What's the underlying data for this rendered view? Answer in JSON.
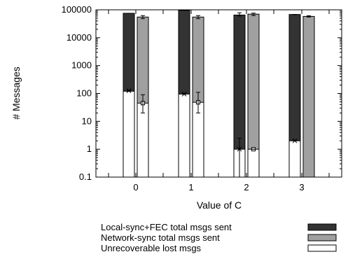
{
  "chart_data": {
    "type": "bar",
    "title": "",
    "xlabel": "Value of C",
    "ylabel": "# Messages",
    "yscale": "log",
    "ylim": [
      0.1,
      100000
    ],
    "categories": [
      "0",
      "1",
      "2",
      "3"
    ],
    "y_ticks": [
      "0.1",
      "1",
      "10",
      "100",
      "1000",
      "10000",
      "100000"
    ],
    "legend_position": "bottom-center",
    "series": [
      {
        "name": "Local-sync+FEC total msgs sent",
        "color": "#333333",
        "values": [
          75000,
          95000,
          65000,
          68000
        ],
        "error_low": [
          75000,
          95000,
          60000,
          68000
        ],
        "error_high": [
          75000,
          95000,
          78000,
          68000
        ]
      },
      {
        "name": "Network-sync total msgs sent",
        "color": "#a0a0a0",
        "values": [
          55000,
          55000,
          70000,
          58000
        ],
        "error_low": [
          48000,
          48000,
          62000,
          55000
        ],
        "error_high": [
          62000,
          62000,
          76000,
          61000
        ]
      },
      {
        "name": "Unrecoverable lost msgs",
        "color": "#ffffff",
        "values": [
          120,
          95,
          1,
          2
        ],
        "error_low": [
          120,
          95,
          0.1,
          2
        ],
        "error_high": [
          130,
          100,
          2.5,
          2.1
        ],
        "markers": [
          125,
          95,
          1,
          2
        ],
        "ni_values": [
          45,
          48,
          1,
          null
        ],
        "ni_error_low": [
          20,
          20,
          1,
          null
        ],
        "ni_error_high": [
          90,
          110,
          1,
          null
        ]
      }
    ]
  }
}
